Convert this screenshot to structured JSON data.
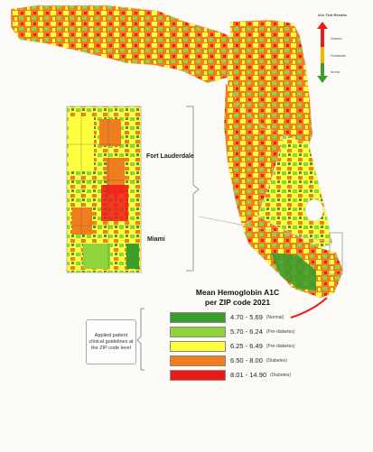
{
  "figure": {
    "colors": {
      "normal": "#3a9e2b",
      "pre_low": "#8fd43a",
      "pre_high": "#ffff40",
      "diab_low": "#f07e1f",
      "diab_high": "#ee1a1a",
      "frame": "#bbbbbb"
    },
    "arrow_legend": {
      "title": "A1c Test Results",
      "labels": [
        "Diabetes",
        "Prediabetes",
        "Normal"
      ]
    },
    "inset": {
      "city_labels": [
        "Fort Lauderdale",
        "Miami"
      ]
    },
    "legend": {
      "title_line1": "Mean Hemoglobin A1C",
      "title_line2": "per ZIP code 2021",
      "items": [
        {
          "range": "4.70 - 5.69",
          "note": "(Normal)",
          "color": "#3a9e2b"
        },
        {
          "range": "5.70 - 6.24",
          "note": "(Pre-diabetes)",
          "color": "#8fd43a"
        },
        {
          "range": "6.25 - 6.49",
          "note": "(Pre-diabetes)",
          "color": "#ffff40"
        },
        {
          "range": "6.50 - 8.00",
          "note": "(Diabetes)",
          "color": "#f07e1f"
        },
        {
          "range": "8.01 - 14.90",
          "note": "(Diabetes)",
          "color": "#ee1a1a"
        }
      ],
      "annotation": "Applied patient clinical guidelines at the ZIP code level"
    }
  }
}
